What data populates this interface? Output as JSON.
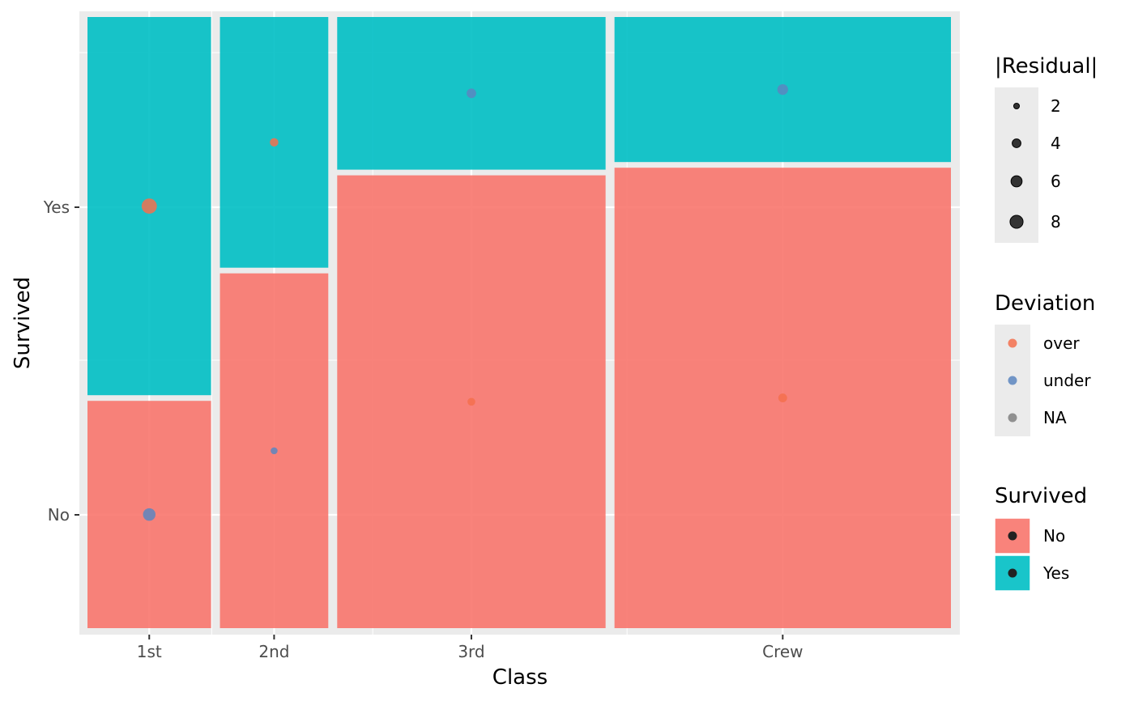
{
  "chart_data": {
    "type": "mosaic",
    "xlabel": "Class",
    "ylabel": "Survived",
    "categories": [
      "1st",
      "2nd",
      "3rd",
      "Crew"
    ],
    "class_counts": [
      325,
      285,
      706,
      885
    ],
    "survived_levels": [
      "No",
      "Yes"
    ],
    "survived_counts": {
      "1st": {
        "No": 122,
        "Yes": 203
      },
      "2nd": {
        "No": 167,
        "Yes": 118
      },
      "3rd": {
        "No": 528,
        "Yes": 178
      },
      "Crew": {
        "No": 673,
        "Yes": 212
      }
    },
    "residual_points": [
      {
        "class": "1st",
        "survived": "Yes",
        "residual": 9.57,
        "deviation": "over"
      },
      {
        "class": "1st",
        "survived": "No",
        "residual": 6.61,
        "deviation": "under"
      },
      {
        "class": "2nd",
        "survived": "Yes",
        "residual": 3.21,
        "deviation": "over"
      },
      {
        "class": "2nd",
        "survived": "No",
        "residual": 2.22,
        "deviation": "under"
      },
      {
        "class": "3rd",
        "survived": "Yes",
        "residual": 4.0,
        "deviation": "under"
      },
      {
        "class": "3rd",
        "survived": "No",
        "residual": 2.76,
        "deviation": "over"
      },
      {
        "class": "Crew",
        "survived": "Yes",
        "residual": 4.96,
        "deviation": "under"
      },
      {
        "class": "Crew",
        "survived": "No",
        "residual": 3.43,
        "deviation": "over"
      }
    ],
    "y_ticks": [
      "No",
      "Yes"
    ],
    "grid": true,
    "colors": {
      "No": "#F8766D",
      "Yes": "#00BFC4",
      "over": "#F4704D",
      "under": "#5C86C0",
      "NA": "#808080",
      "panel": "#EBEBEB"
    }
  },
  "legends": {
    "residual": {
      "title": "|Residual|",
      "values": [
        2,
        4,
        6,
        8
      ],
      "labels": [
        "2",
        "4",
        "6",
        "8"
      ]
    },
    "deviation": {
      "title": "Deviation",
      "labels": [
        "over",
        "under",
        "NA"
      ]
    },
    "survived": {
      "title": "Survived",
      "labels": [
        "No",
        "Yes"
      ]
    }
  }
}
